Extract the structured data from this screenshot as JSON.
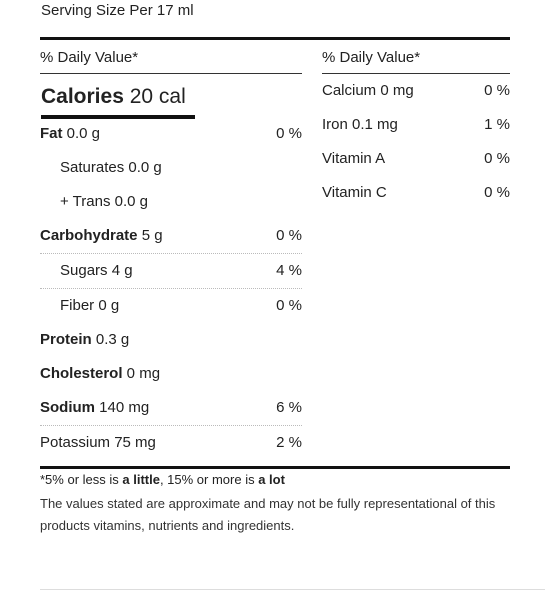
{
  "serving_size": "Serving Size Per 17 ml",
  "left": {
    "dv_header": "% Daily Value*",
    "calories_label": "Calories",
    "calories_value": " 20 cal",
    "nutrients": [
      {
        "label": "Fat",
        "amount": " 0.0 g",
        "pct": "0 %"
      },
      {
        "label": "",
        "amount": "Saturates 0.0 g",
        "pct": ""
      },
      {
        "label": "",
        "amount": "+ Trans 0.0 g",
        "pct": ""
      },
      {
        "label": "Carbohydrate",
        "amount": " 5 g",
        "pct": "0 %"
      },
      {
        "label": "",
        "amount": "Sugars 4 g",
        "pct": "4 %"
      },
      {
        "label": "",
        "amount": "Fiber 0 g",
        "pct": "0 %"
      },
      {
        "label": "Protein",
        "amount": " 0.3 g",
        "pct": ""
      },
      {
        "label": "Cholesterol",
        "amount": " 0 mg",
        "pct": ""
      },
      {
        "label": "Sodium",
        "amount": " 140 mg",
        "pct": "6 %"
      },
      {
        "label": "",
        "amount": "Potassium 75 mg",
        "pct": "2 %"
      }
    ]
  },
  "right": {
    "dv_header": "% Daily Value*",
    "items": [
      {
        "name": "Calcium 0 mg",
        "pct": "0 %"
      },
      {
        "name": "Iron 0.1 mg",
        "pct": "1 %"
      },
      {
        "name": "Vitamin A",
        "pct": "0 %"
      },
      {
        "name": "Vitamin C",
        "pct": "0 %"
      }
    ]
  },
  "footnote": {
    "prefix": "*5% or less is ",
    "little": "a little",
    "middle": ", 15% or more is ",
    "lot": "a lot"
  },
  "disclaimer": "The values stated are approximate and may not be fully representational of this products vitamins, nutrients and ingredients."
}
